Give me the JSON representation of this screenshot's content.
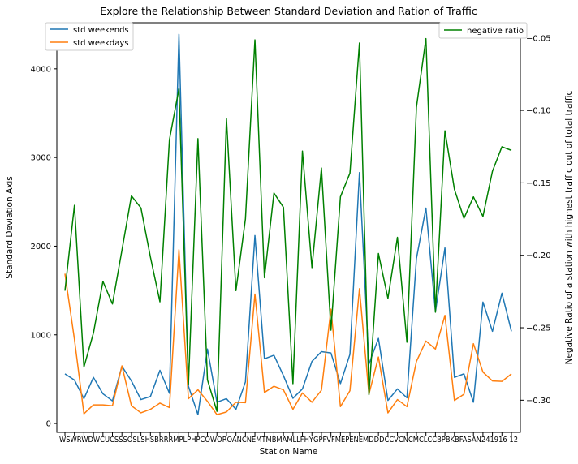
{
  "chart_data": {
    "type": "line",
    "title": "Explore the Relationship Between Standard Deviation and Ration of Traffic",
    "xlabel": "Station Name",
    "ylabel_left": "Standard Deviation Axis",
    "ylabel_right": "Negative Ratio of a station with highest traffic out of total traffic",
    "categories": [
      "WS",
      "WR",
      "WD",
      "WC",
      "UC",
      "SS",
      "SO",
      "SL",
      "SH",
      "SB",
      "RR",
      "RM",
      "PL",
      "PH",
      "PC",
      "OW",
      "OR",
      "OA",
      "NC",
      "NE",
      "MT",
      "MB",
      "MA",
      "ML",
      "LF",
      "HY",
      "GP",
      "FV",
      "FM",
      "EP",
      "EN",
      "EM",
      "DD",
      "DC",
      "CV",
      "CN",
      "CM",
      "CL",
      "CC",
      "CB",
      "PB",
      "KB",
      "FA",
      "SA",
      "N24",
      "19",
      "16",
      "12"
    ],
    "x_tick_text": "WSWRWDWCUCSSSOSLSHSBRRRMPLPHPCOWOROANCNEMTMBMAMLLFHYGPFVFMEPENEMDDDCCVCNCMCLCCBPBKBFASAN241916 12",
    "ylim_left": [
      -100,
      4520
    ],
    "yticks_left": [
      0,
      1000,
      2000,
      3000,
      4000
    ],
    "ylim_right": [
      -0.3222,
      -0.0395
    ],
    "yticks_right": [
      -0.3,
      -0.25,
      -0.2,
      -0.15,
      -0.1,
      -0.05
    ],
    "ytick_labels_right": [
      "−0.30",
      "−0.25",
      "−0.20",
      "−0.15",
      "−0.10",
      "−0.05"
    ],
    "legend_left": {
      "placement": "upper-left",
      "entries": [
        "std weekends",
        "std weekdays"
      ]
    },
    "legend_right": {
      "placement": "upper-right",
      "entries": [
        "negative ratio"
      ]
    },
    "grid": false,
    "series": [
      {
        "name": "std weekends",
        "axis": "left",
        "color": "#1f77b4",
        "values": [
          560,
          490,
          280,
          520,
          335,
          255,
          645,
          480,
          270,
          305,
          600,
          340,
          4390,
          420,
          100,
          840,
          240,
          280,
          160,
          470,
          2120,
          730,
          770,
          540,
          285,
          390,
          700,
          810,
          795,
          450,
          780,
          2830,
          670,
          960,
          260,
          390,
          290,
          1860,
          2430,
          1260,
          1980,
          520,
          560,
          240,
          1370,
          1040,
          1470,
          1040
        ]
      },
      {
        "name": "std weekdays",
        "axis": "left",
        "color": "#ff7f0e",
        "values": [
          1690,
          950,
          110,
          210,
          210,
          200,
          650,
          200,
          120,
          160,
          230,
          180,
          1960,
          280,
          380,
          250,
          100,
          130,
          240,
          235,
          1460,
          350,
          420,
          380,
          160,
          345,
          240,
          375,
          1290,
          190,
          370,
          1520,
          330,
          750,
          120,
          270,
          190,
          700,
          930,
          840,
          1220,
          260,
          330,
          900,
          580,
          480,
          475,
          560
        ]
      },
      {
        "name": "negative ratio",
        "axis": "right",
        "color": "#008000",
        "values": [
          -0.2245,
          -0.1655,
          -0.2772,
          -0.2536,
          -0.218,
          -0.2336,
          -0.1965,
          -0.159,
          -0.1673,
          -0.2013,
          -0.2321,
          -0.1203,
          -0.0851,
          -0.2889,
          -0.1195,
          -0.2859,
          -0.3077,
          -0.1057,
          -0.2244,
          -0.1749,
          -0.0513,
          -0.2155,
          -0.157,
          -0.1669,
          -0.2886,
          -0.1281,
          -0.2085,
          -0.1398,
          -0.2517,
          -0.1596,
          -0.1433,
          -0.0535,
          -0.2962,
          -0.1988,
          -0.2297,
          -0.1876,
          -0.26,
          -0.0978,
          -0.0505,
          -0.2393,
          -0.1141,
          -0.1545,
          -0.1745,
          -0.1597,
          -0.1732,
          -0.142,
          -0.1251,
          -0.1276
        ]
      }
    ]
  }
}
